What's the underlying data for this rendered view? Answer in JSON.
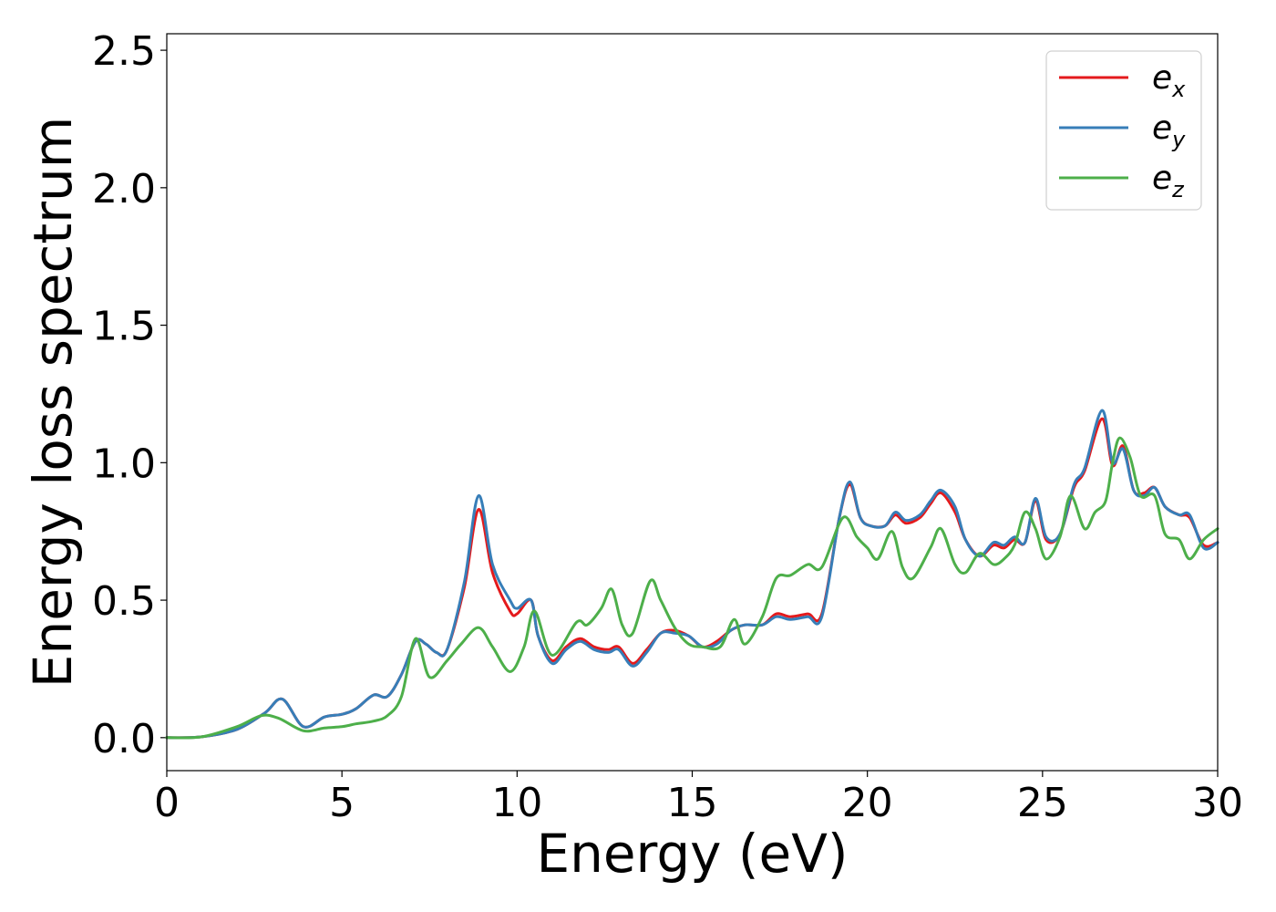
{
  "chart_data": {
    "type": "line",
    "title": "",
    "xlabel": "Energy (eV)",
    "ylabel": "Energy loss spectrum",
    "xlim": [
      0,
      30
    ],
    "ylim": [
      -0.12,
      2.56
    ],
    "xticks": [
      0,
      5,
      10,
      15,
      20,
      25,
      30
    ],
    "xtick_labels": [
      "0",
      "5",
      "10",
      "15",
      "20",
      "25",
      "30"
    ],
    "yticks": [
      0.0,
      0.5,
      1.0,
      1.5,
      2.0,
      2.5
    ],
    "ytick_labels": [
      "0.0",
      "0.5",
      "1.0",
      "1.5",
      "2.0",
      "2.5"
    ],
    "grid": false,
    "legend_position": "top-right",
    "series": [
      {
        "name": "e_x",
        "legend_base": "e",
        "legend_sub": "x",
        "color": "#e41a1c",
        "x": [
          0,
          1,
          2,
          2.8,
          3.3,
          3.9,
          4.5,
          5.0,
          5.4,
          5.9,
          6.3,
          6.7,
          7.1,
          7.4,
          7.7,
          8.0,
          8.5,
          8.9,
          9.3,
          9.8,
          10.0,
          10.4,
          10.6,
          11.0,
          11.4,
          11.8,
          12.2,
          12.6,
          12.9,
          13.3,
          13.7,
          14.1,
          14.5,
          14.9,
          15.3,
          15.7,
          16.1,
          16.5,
          17.0,
          17.4,
          17.8,
          18.3,
          18.7,
          19.2,
          19.5,
          19.8,
          20.1,
          20.5,
          20.8,
          21.1,
          21.5,
          21.8,
          22.1,
          22.5,
          22.8,
          23.2,
          23.6,
          23.9,
          24.2,
          24.5,
          24.8,
          25.1,
          25.5,
          25.9,
          26.2,
          26.7,
          27.0,
          27.3,
          27.6,
          27.9,
          28.2,
          28.5,
          28.9,
          29.2,
          29.6,
          30
        ],
        "y": [
          0,
          0.003,
          0.03,
          0.09,
          0.14,
          0.04,
          0.075,
          0.085,
          0.105,
          0.155,
          0.15,
          0.23,
          0.35,
          0.34,
          0.31,
          0.32,
          0.55,
          0.83,
          0.6,
          0.46,
          0.45,
          0.5,
          0.37,
          0.28,
          0.33,
          0.36,
          0.33,
          0.32,
          0.33,
          0.27,
          0.32,
          0.38,
          0.39,
          0.37,
          0.33,
          0.35,
          0.39,
          0.41,
          0.41,
          0.45,
          0.44,
          0.45,
          0.45,
          0.8,
          0.92,
          0.8,
          0.77,
          0.77,
          0.81,
          0.78,
          0.8,
          0.85,
          0.89,
          0.82,
          0.72,
          0.66,
          0.7,
          0.69,
          0.72,
          0.71,
          0.86,
          0.72,
          0.74,
          0.91,
          0.97,
          1.16,
          0.99,
          1.06,
          0.9,
          0.89,
          0.91,
          0.84,
          0.81,
          0.8,
          0.7,
          0.71
        ]
      },
      {
        "name": "e_y",
        "legend_base": "e",
        "legend_sub": "y",
        "color": "#377eb8",
        "x": [
          0,
          1,
          2,
          2.8,
          3.3,
          3.9,
          4.5,
          5.0,
          5.4,
          5.9,
          6.3,
          6.7,
          7.1,
          7.4,
          7.7,
          8.0,
          8.5,
          8.9,
          9.3,
          9.8,
          10.0,
          10.4,
          10.6,
          11.0,
          11.4,
          11.8,
          12.2,
          12.6,
          12.9,
          13.3,
          13.7,
          14.1,
          14.5,
          14.9,
          15.3,
          15.7,
          16.1,
          16.5,
          17.0,
          17.4,
          17.8,
          18.3,
          18.7,
          19.2,
          19.5,
          19.8,
          20.1,
          20.5,
          20.8,
          21.1,
          21.5,
          21.8,
          22.1,
          22.5,
          22.8,
          23.2,
          23.6,
          23.9,
          24.2,
          24.5,
          24.8,
          25.1,
          25.5,
          25.9,
          26.2,
          26.7,
          27.0,
          27.3,
          27.6,
          27.9,
          28.2,
          28.5,
          28.9,
          29.2,
          29.6,
          30
        ],
        "y": [
          0,
          0.003,
          0.03,
          0.09,
          0.14,
          0.04,
          0.075,
          0.085,
          0.105,
          0.155,
          0.15,
          0.23,
          0.35,
          0.34,
          0.31,
          0.32,
          0.57,
          0.88,
          0.63,
          0.5,
          0.47,
          0.5,
          0.37,
          0.27,
          0.32,
          0.35,
          0.32,
          0.31,
          0.32,
          0.26,
          0.31,
          0.38,
          0.38,
          0.37,
          0.33,
          0.34,
          0.39,
          0.41,
          0.41,
          0.44,
          0.43,
          0.44,
          0.44,
          0.8,
          0.93,
          0.8,
          0.77,
          0.77,
          0.82,
          0.79,
          0.81,
          0.86,
          0.9,
          0.84,
          0.72,
          0.66,
          0.71,
          0.7,
          0.73,
          0.71,
          0.87,
          0.73,
          0.74,
          0.92,
          0.98,
          1.19,
          1.0,
          1.05,
          0.9,
          0.88,
          0.91,
          0.84,
          0.81,
          0.81,
          0.69,
          0.71
        ]
      },
      {
        "name": "e_z",
        "legend_base": "e",
        "legend_sub": "z",
        "color": "#4daf4a",
        "x": [
          0,
          1,
          2,
          2.7,
          3.2,
          3.9,
          4.5,
          5.0,
          5.4,
          5.9,
          6.3,
          6.7,
          7.1,
          7.5,
          8.0,
          8.4,
          8.9,
          9.3,
          9.8,
          10.2,
          10.5,
          11.0,
          11.7,
          12.0,
          12.4,
          12.7,
          13.0,
          13.3,
          13.8,
          14.1,
          14.5,
          14.9,
          15.3,
          15.8,
          16.2,
          16.5,
          17.0,
          17.4,
          17.8,
          18.3,
          18.7,
          19.3,
          19.7,
          20.0,
          20.3,
          20.7,
          21.0,
          21.3,
          21.8,
          22.1,
          22.5,
          22.8,
          23.2,
          23.6,
          23.9,
          24.2,
          24.5,
          24.8,
          25.1,
          25.5,
          25.8,
          26.2,
          26.5,
          26.8,
          27.0,
          27.2,
          27.5,
          27.8,
          28.2,
          28.5,
          28.9,
          29.2,
          29.6,
          30
        ],
        "y": [
          0,
          0.003,
          0.04,
          0.08,
          0.07,
          0.025,
          0.035,
          0.04,
          0.05,
          0.06,
          0.08,
          0.15,
          0.36,
          0.22,
          0.28,
          0.34,
          0.4,
          0.33,
          0.24,
          0.33,
          0.46,
          0.3,
          0.42,
          0.41,
          0.47,
          0.54,
          0.41,
          0.38,
          0.57,
          0.5,
          0.4,
          0.34,
          0.33,
          0.33,
          0.43,
          0.34,
          0.44,
          0.58,
          0.59,
          0.63,
          0.62,
          0.8,
          0.73,
          0.69,
          0.65,
          0.75,
          0.62,
          0.58,
          0.69,
          0.76,
          0.63,
          0.6,
          0.67,
          0.63,
          0.65,
          0.7,
          0.82,
          0.76,
          0.65,
          0.73,
          0.88,
          0.76,
          0.82,
          0.86,
          1.0,
          1.09,
          1.02,
          0.88,
          0.88,
          0.74,
          0.72,
          0.65,
          0.72,
          0.76
        ]
      }
    ]
  }
}
